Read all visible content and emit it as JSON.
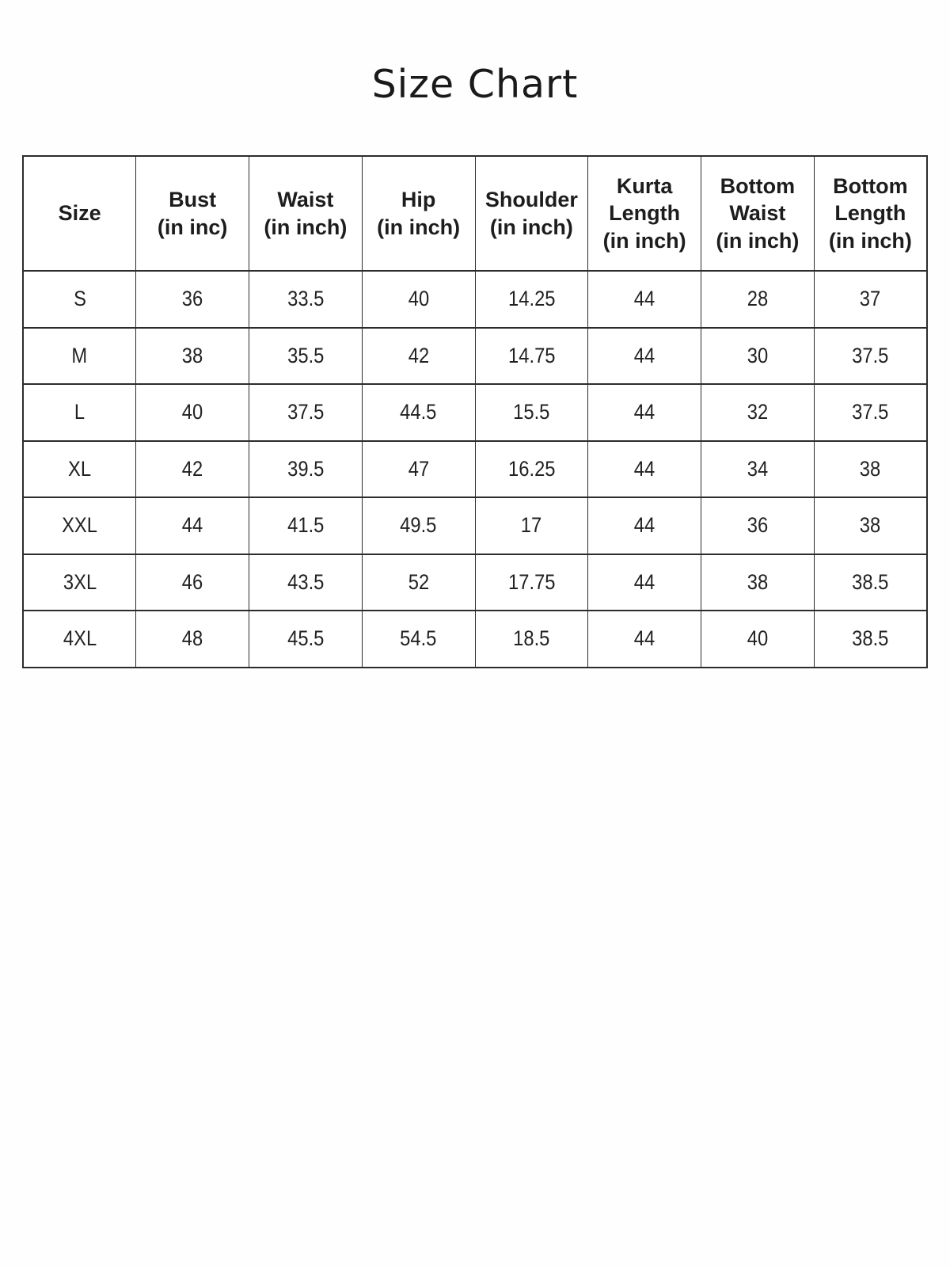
{
  "page": {
    "title": "Size Chart"
  },
  "table": {
    "columns": [
      {
        "id": "size",
        "label": "Size"
      },
      {
        "id": "bust",
        "label": "Bust\n(in inc)"
      },
      {
        "id": "waist",
        "label": "Waist\n(in inch)"
      },
      {
        "id": "hip",
        "label": "Hip\n(in inch)"
      },
      {
        "id": "shoulder",
        "label": "Shoulder\n(in inch)"
      },
      {
        "id": "kurta-length",
        "label": "Kurta\nLength\n(in inch)"
      },
      {
        "id": "bottom-waist",
        "label": "Bottom\nWaist\n(in inch)"
      },
      {
        "id": "bottom-length",
        "label": "Bottom\nLength\n(in inch)"
      }
    ],
    "rows": [
      [
        "S",
        "36",
        "33.5",
        "40",
        "14.25",
        "44",
        "28",
        "37"
      ],
      [
        "M",
        "38",
        "35.5",
        "42",
        "14.75",
        "44",
        "30",
        "37.5"
      ],
      [
        "L",
        "40",
        "37.5",
        "44.5",
        "15.5",
        "44",
        "32",
        "37.5"
      ],
      [
        "XL",
        "42",
        "39.5",
        "47",
        "16.25",
        "44",
        "34",
        "38"
      ],
      [
        "XXL",
        "44",
        "41.5",
        "49.5",
        "17",
        "44",
        "36",
        "38"
      ],
      [
        "3XL",
        "46",
        "43.5",
        "52",
        "17.75",
        "44",
        "38",
        "38.5"
      ],
      [
        "4XL",
        "48",
        "45.5",
        "54.5",
        "18.5",
        "44",
        "40",
        "38.5"
      ]
    ]
  },
  "chart_data": {
    "type": "table",
    "title": "Size Chart",
    "columns": [
      "Size",
      "Bust (in inc)",
      "Waist (in inch)",
      "Hip (in inch)",
      "Shoulder (in inch)",
      "Kurta Length (in inch)",
      "Bottom Waist (in inch)",
      "Bottom Length (in inch)"
    ],
    "rows": [
      {
        "size": "S",
        "bust": 36,
        "waist": 33.5,
        "hip": 40,
        "shoulder": 14.25,
        "kurta_length": 44,
        "bottom_waist": 28,
        "bottom_length": 37
      },
      {
        "size": "M",
        "bust": 38,
        "waist": 35.5,
        "hip": 42,
        "shoulder": 14.75,
        "kurta_length": 44,
        "bottom_waist": 30,
        "bottom_length": 37.5
      },
      {
        "size": "L",
        "bust": 40,
        "waist": 37.5,
        "hip": 44.5,
        "shoulder": 15.5,
        "kurta_length": 44,
        "bottom_waist": 32,
        "bottom_length": 37.5
      },
      {
        "size": "XL",
        "bust": 42,
        "waist": 39.5,
        "hip": 47,
        "shoulder": 16.25,
        "kurta_length": 44,
        "bottom_waist": 34,
        "bottom_length": 38
      },
      {
        "size": "XXL",
        "bust": 44,
        "waist": 41.5,
        "hip": 49.5,
        "shoulder": 17,
        "kurta_length": 44,
        "bottom_waist": 36,
        "bottom_length": 38
      },
      {
        "size": "3XL",
        "bust": 46,
        "waist": 43.5,
        "hip": 52,
        "shoulder": 17.75,
        "kurta_length": 44,
        "bottom_waist": 38,
        "bottom_length": 38.5
      },
      {
        "size": "4XL",
        "bust": 48,
        "waist": 45.5,
        "hip": 54.5,
        "shoulder": 18.5,
        "kurta_length": 44,
        "bottom_waist": 40,
        "bottom_length": 38.5
      }
    ]
  },
  "colors": {
    "text": "#1e1e1e",
    "border": "#2c2c2c",
    "background": "#ffffff"
  }
}
